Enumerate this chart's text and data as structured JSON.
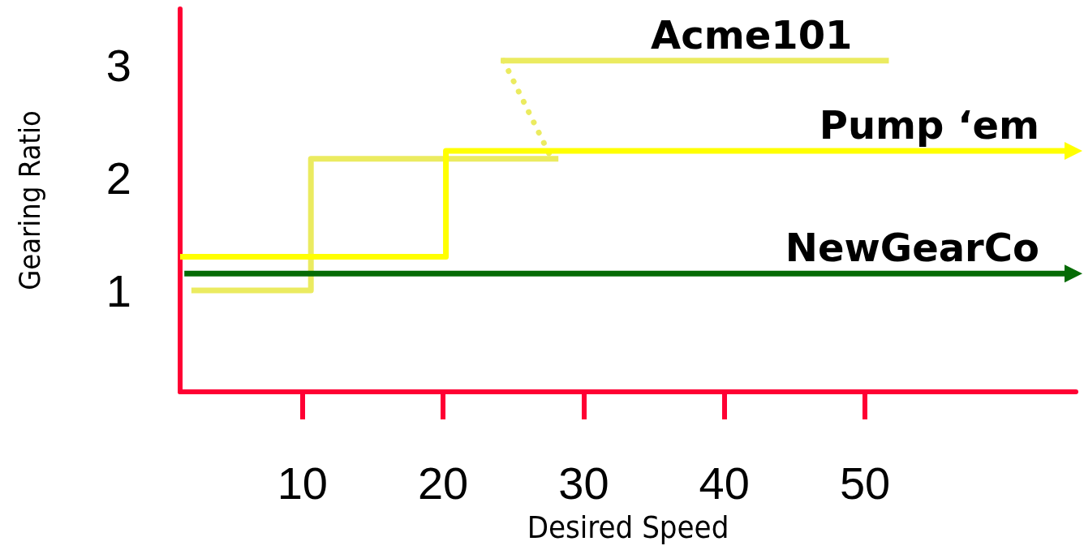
{
  "chart_data": {
    "type": "line",
    "xlabel": "Desired Speed",
    "ylabel": "Gearing Ratio",
    "xlim": [
      1.3,
      65
    ],
    "ylim": [
      0.1,
      3.5
    ],
    "xticks": [
      10,
      20,
      30,
      40,
      50
    ],
    "yticks": [
      1,
      2,
      3
    ],
    "line_style": "solid",
    "series": [
      {
        "type": "step",
        "color": "#ebeb60",
        "x": [
          2.1,
          10.6,
          28.2
        ],
        "values": [
          1.0,
          2.17,
          2.17
        ]
      },
      {
        "type": "line",
        "color": "#ebeb60",
        "x": [
          24.3,
          27.6
        ],
        "values": [
          3.04,
          2.2
        ],
        "line_style": "dotted"
      },
      {
        "name": "Acme101",
        "type": "line",
        "color": "#ebeb60",
        "x": [
          24.1,
          51.7
        ],
        "values": [
          3.04,
          3.04
        ]
      },
      {
        "name": "Pump ‘em",
        "type": "step",
        "color": "#ffff00",
        "x": [
          1.3,
          20.2,
          65
        ],
        "values": [
          1.3,
          2.24,
          2.24
        ]
      },
      {
        "name": "NewGearCo",
        "color": "#056b05",
        "x": [
          1.6,
          65
        ],
        "values": [
          1.15,
          1.15
        ]
      }
    ]
  }
}
